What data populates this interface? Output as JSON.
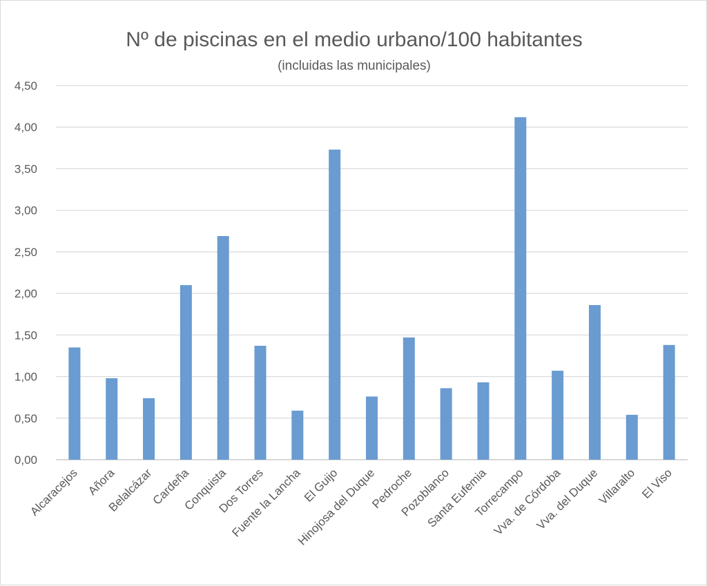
{
  "chart_data": {
    "type": "bar",
    "title": "Nº de piscinas en el medio urbano/100 habitantes",
    "subtitle": "(incluidas las municipales)",
    "xlabel": "",
    "ylabel": "",
    "categories": [
      "Alcaracejos",
      "Añora",
      "Belalcázar",
      "Cardeña",
      "Conquista",
      "Dos Torres",
      "Fuente la Lancha",
      "El Guijo",
      "Hinojosa del Duque",
      "Pedroche",
      "Pozoblanco",
      "Santa Eufemia",
      "Torrecampo",
      "Vva. de Córdoba",
      "Vva. del Duque",
      "Villaralto",
      "El Viso"
    ],
    "values": [
      1.35,
      0.98,
      0.74,
      2.1,
      2.69,
      1.37,
      0.59,
      3.73,
      0.76,
      1.47,
      0.86,
      0.93,
      4.12,
      1.07,
      1.86,
      0.54,
      1.38
    ],
    "yticks": [
      "0,00",
      "0,50",
      "1,00",
      "1,50",
      "2,00",
      "2,50",
      "3,00",
      "3,50",
      "4,00",
      "4,50"
    ],
    "ylim": [
      0,
      4.5
    ],
    "grid": true,
    "legend": "none",
    "bar_color": "#6a9bd1",
    "grid_color": "#d9d9d9"
  }
}
